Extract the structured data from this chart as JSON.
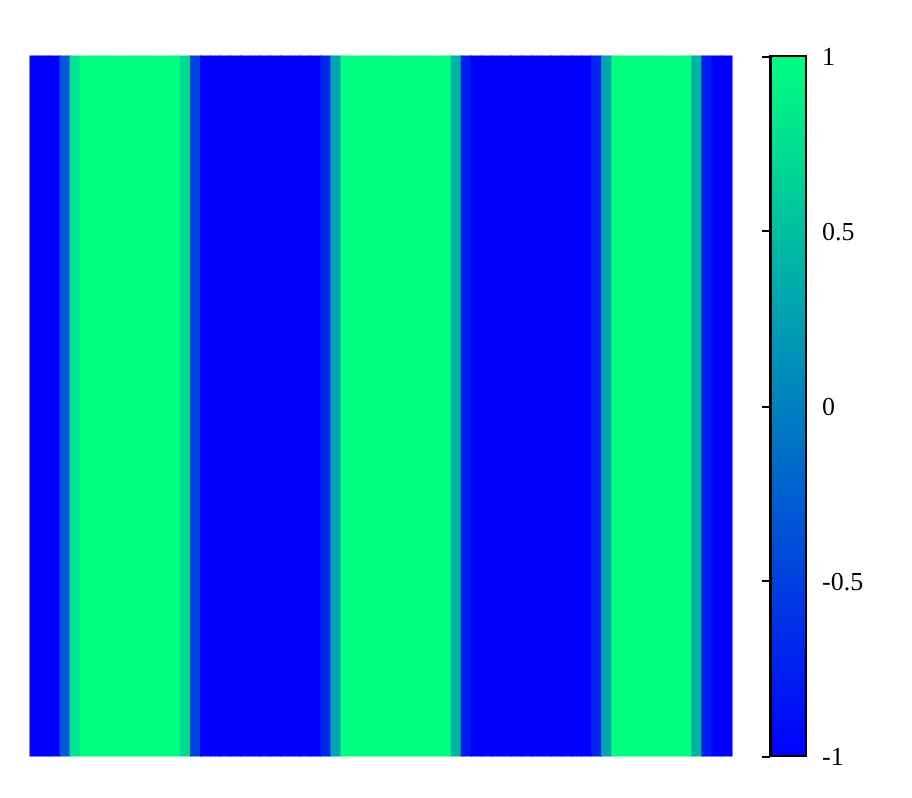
{
  "chart_data": {
    "type": "heatmap",
    "categories": [
      null,
      null,
      null,
      null,
      null,
      null,
      null,
      null,
      null,
      null,
      null,
      null,
      null,
      null,
      null,
      null,
      null,
      null,
      null,
      null,
      null,
      null,
      null,
      null,
      null,
      null,
      null,
      null,
      null,
      null,
      null,
      null,
      null,
      null,
      null,
      null,
      null,
      null,
      null,
      null,
      null,
      null,
      null,
      null,
      null,
      null,
      null,
      null,
      null,
      null,
      null,
      null,
      null,
      null,
      null,
      null,
      null,
      null,
      null,
      null,
      null,
      null,
      null,
      null,
      null,
      null,
      null,
      null,
      null,
      null
    ],
    "y_categories": [
      null
    ],
    "cells": [
      [
        -1,
        -1,
        -1,
        -0.3,
        0.8,
        1,
        1,
        1,
        1,
        1,
        1,
        1,
        1,
        1,
        1,
        0.7,
        -0.5,
        -1,
        -1,
        -1,
        -1,
        -1,
        -1,
        -1,
        -1,
        -1,
        -1,
        -1,
        -1,
        -0.7,
        0.3,
        1,
        1,
        1,
        1,
        1,
        1,
        1,
        1,
        1,
        1,
        1,
        0.4,
        -0.8,
        -1,
        -1,
        -1,
        -1,
        -1,
        -1,
        -1,
        -1,
        -1,
        -1,
        -1,
        -1,
        -0.7,
        0.3,
        1,
        1,
        1,
        1,
        1,
        1,
        1,
        1,
        0.4,
        -0.8,
        -1,
        -1
      ]
    ],
    "clim": [
      -1,
      1
    ],
    "cticks": [
      -1,
      -0.5,
      0,
      0.5,
      1
    ]
  }
}
